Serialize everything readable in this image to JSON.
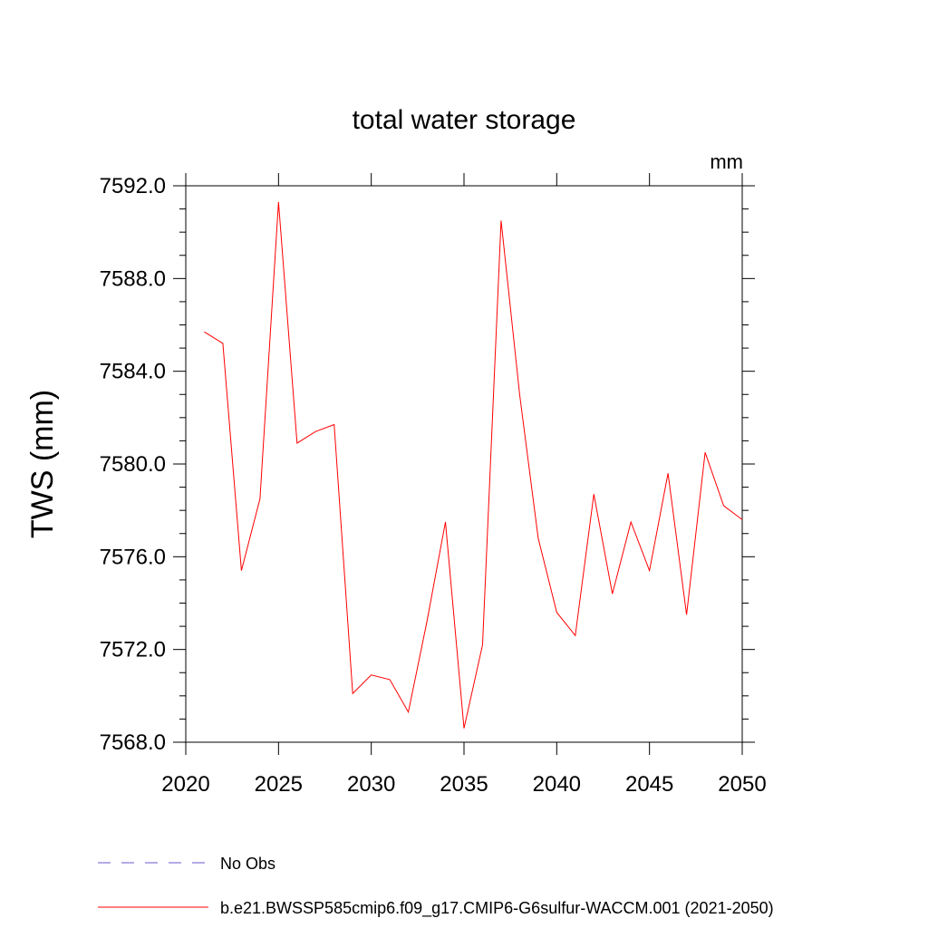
{
  "chart_data": {
    "type": "line",
    "title": "total water storage",
    "unit_label": "mm",
    "ylabel": "TWS  (mm)",
    "xlabel": "",
    "xlim": [
      2020,
      2050
    ],
    "ylim": [
      7568.0,
      7592.0
    ],
    "x_ticks": [
      2020,
      2025,
      2030,
      2035,
      2040,
      2045,
      2050
    ],
    "x_tick_labels": [
      "2020",
      "2025",
      "2030",
      "2035",
      "2040",
      "2045",
      "2050"
    ],
    "y_ticks": [
      7568.0,
      7572.0,
      7576.0,
      7580.0,
      7584.0,
      7588.0,
      7592.0
    ],
    "y_tick_labels": [
      "7568.0",
      "7572.0",
      "7576.0",
      "7580.0",
      "7584.0",
      "7588.0",
      "7592.0"
    ],
    "grid": false,
    "legend_position": "bottom",
    "series": [
      {
        "name": "b.e21.BWSSP585cmip6.f09_g17.CMIP6-G6sulfur-WACCM.001 (2021-2050)",
        "color": "#ff0000",
        "x": [
          2021,
          2022,
          2023,
          2024,
          2025,
          2026,
          2027,
          2028,
          2029,
          2030,
          2031,
          2032,
          2033,
          2034,
          2035,
          2036,
          2037,
          2038,
          2039,
          2040,
          2041,
          2042,
          2043,
          2044,
          2045,
          2046,
          2047,
          2048,
          2049,
          2050
        ],
        "values": [
          7585.7,
          7585.2,
          7575.4,
          7578.5,
          7591.3,
          7580.9,
          7581.4,
          7581.7,
          7570.1,
          7570.9,
          7570.7,
          7569.3,
          7573.2,
          7577.5,
          7568.6,
          7572.2,
          7590.5,
          7583.0,
          7576.8,
          7573.6,
          7572.6,
          7578.7,
          7574.4,
          7577.5,
          7575.4,
          7579.6,
          7573.5,
          7580.5,
          7578.2,
          7577.6
        ]
      }
    ],
    "legend": [
      {
        "label": "No Obs",
        "color": "#6a5acd",
        "style": "dashed"
      },
      {
        "label": "b.e21.BWSSP585cmip6.f09_g17.CMIP6-G6sulfur-WACCM.001 (2021-2050)",
        "color": "#ff0000",
        "style": "solid"
      }
    ]
  }
}
